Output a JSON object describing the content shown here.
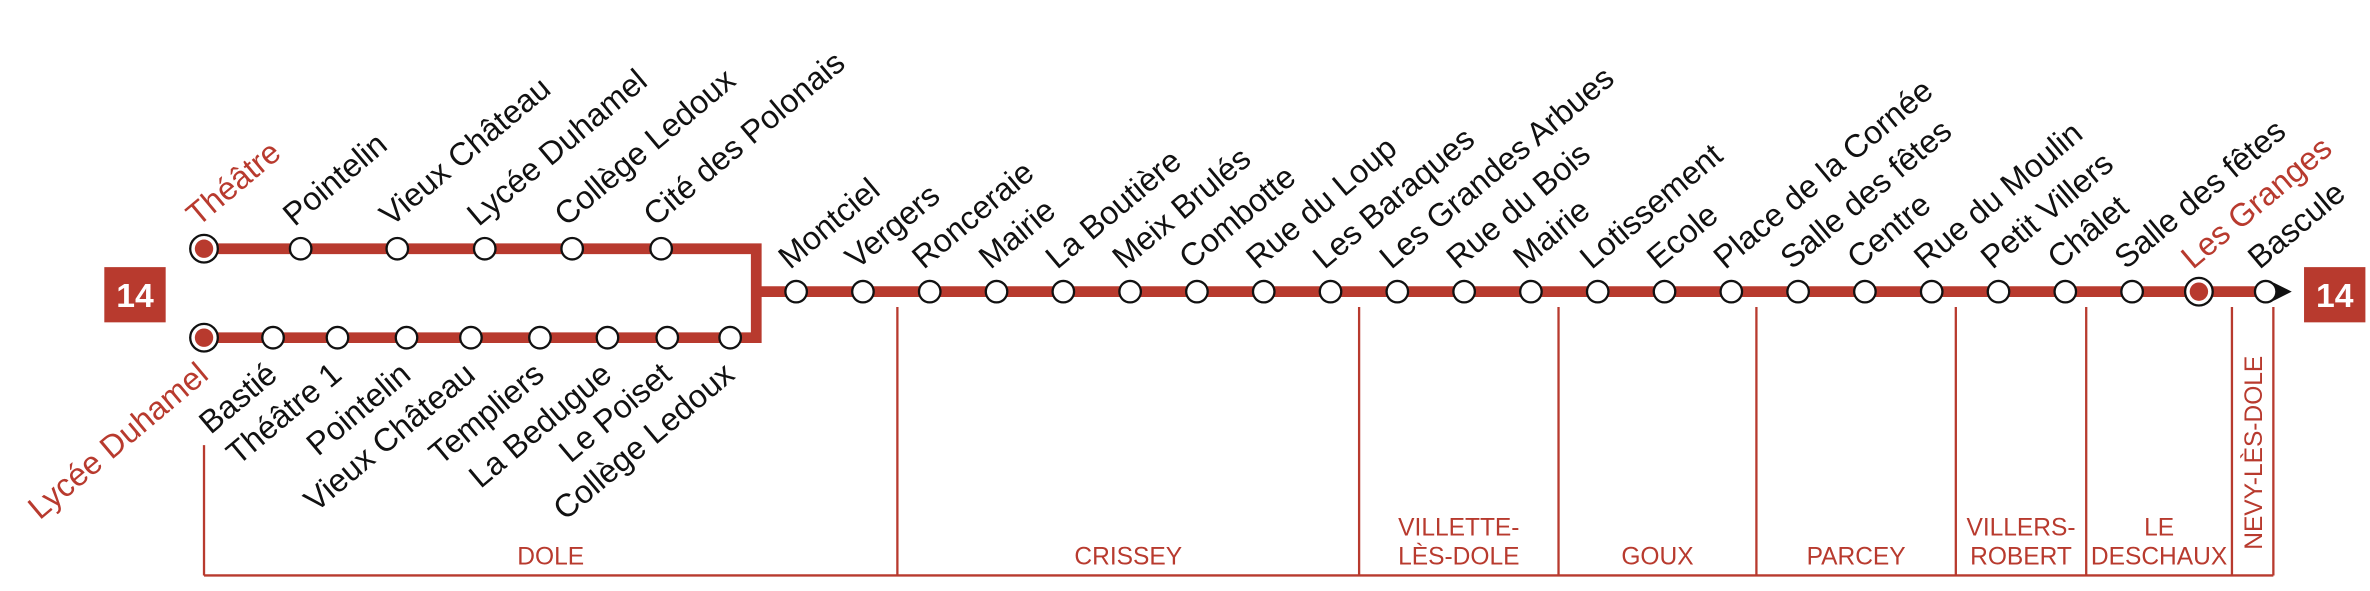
{
  "line": "14",
  "upper_branch": {
    "stops": [
      {
        "name": "Théâtre",
        "terminus": true
      },
      {
        "name": "Pointelin"
      },
      {
        "name": "Vieux Château"
      },
      {
        "name": "Lycée Duhamel"
      },
      {
        "name": "Collège Ledoux"
      },
      {
        "name": "Cité des Polonais"
      }
    ]
  },
  "lower_branch": {
    "stops": [
      {
        "name": "Lycée Duhamel",
        "terminus": true
      },
      {
        "name": "Bastié"
      },
      {
        "name": "Théâtre 1"
      },
      {
        "name": "Pointelin"
      },
      {
        "name": "Vieux Château"
      },
      {
        "name": "Templiers"
      },
      {
        "name": "La Bedugue"
      },
      {
        "name": "Le Poiset"
      },
      {
        "name": "Collège Ledoux"
      }
    ]
  },
  "trunk": {
    "stops": [
      {
        "name": "Montciel"
      },
      {
        "name": "Vergers"
      },
      {
        "name": "Ronceraie"
      },
      {
        "name": "Mairie"
      },
      {
        "name": "La Boutière"
      },
      {
        "name": "Meix Brulés"
      },
      {
        "name": "Combotte"
      },
      {
        "name": "Rue du Loup"
      },
      {
        "name": "Les Baraques"
      },
      {
        "name": "Les Grandes Arbues"
      },
      {
        "name": "Rue du Bois"
      },
      {
        "name": "Mairie"
      },
      {
        "name": "Lotissement"
      },
      {
        "name": "Ecole"
      },
      {
        "name": "Place de la Cornée"
      },
      {
        "name": "Salle des fêtes"
      },
      {
        "name": "Centre"
      },
      {
        "name": "Rue du Moulin"
      },
      {
        "name": "Petit Villers"
      },
      {
        "name": "Châlet"
      },
      {
        "name": "Salle des fêtes"
      },
      {
        "name": "Les Granges",
        "terminus": true
      },
      {
        "name": "Bascule"
      }
    ]
  },
  "communes": [
    {
      "lines": [
        "DOLE"
      ]
    },
    {
      "lines": [
        "CRISSEY"
      ]
    },
    {
      "lines": [
        "VILLETTE-",
        "LÈS-DOLE"
      ]
    },
    {
      "lines": [
        "GOUX"
      ]
    },
    {
      "lines": [
        "PARCEY"
      ]
    },
    {
      "lines": [
        "VILLERS-",
        "ROBERT"
      ]
    },
    {
      "lines": [
        "LE",
        "DESCHAUX"
      ]
    },
    {
      "lines": [
        "NEVY-LÈS-DOLE"
      ],
      "vertical": true
    }
  ]
}
